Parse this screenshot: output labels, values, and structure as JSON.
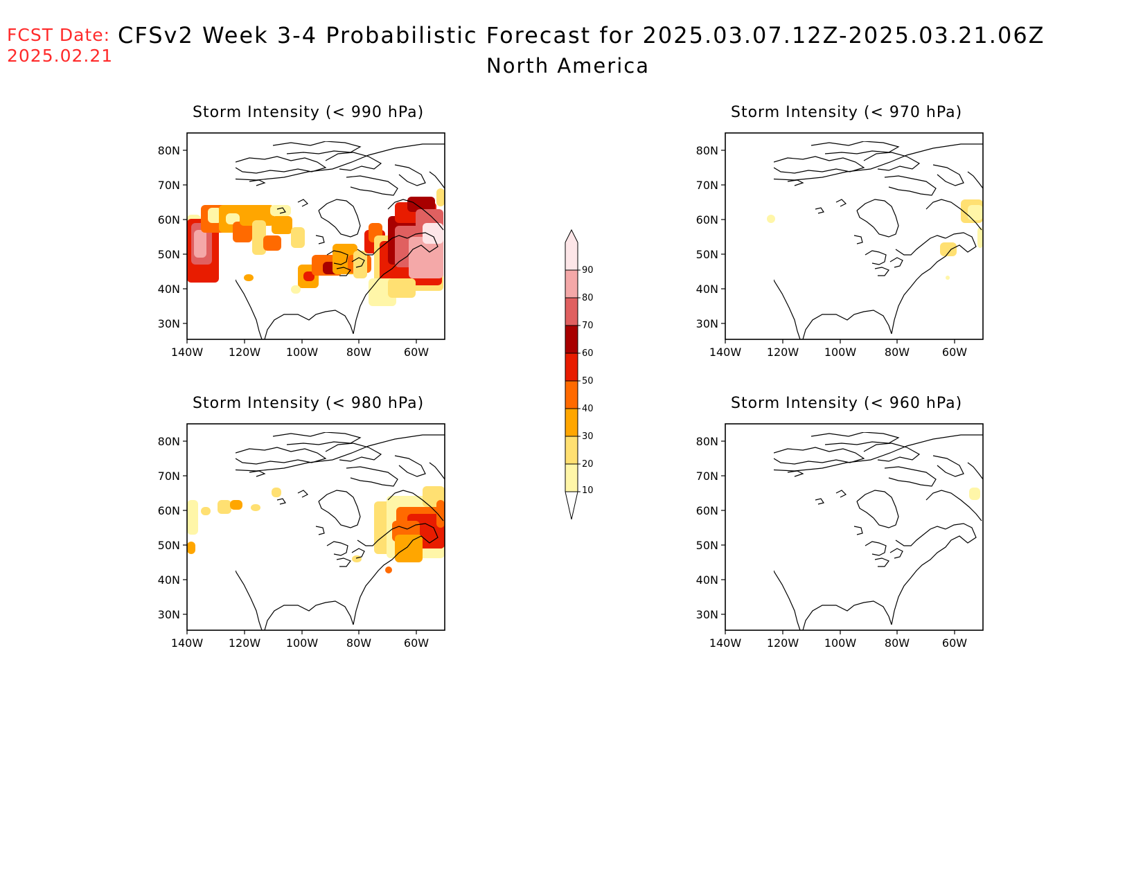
{
  "header": {
    "fcst_label": "FCST Date:",
    "fcst_date": "2025.02.21",
    "title": "CFSv2 Week 3-4 Probabilistic Forecast for 2025.03.07.12Z-2025.03.21.06Z",
    "region": "North America"
  },
  "axes": {
    "lat_labels": [
      "80N",
      "70N",
      "60N",
      "50N",
      "40N",
      "30N"
    ],
    "lon_labels": [
      "140W",
      "120W",
      "100W",
      "80W",
      "60W"
    ]
  },
  "panels": [
    {
      "title": "Storm Intensity (< 990 hPa)"
    },
    {
      "title": "Storm Intensity (< 970 hPa)"
    },
    {
      "title": "Storm Intensity (< 980 hPa)"
    },
    {
      "title": "Storm Intensity (< 960 hPa)"
    }
  ],
  "colorbar": {
    "levels": [
      "10",
      "20",
      "30",
      "40",
      "50",
      "60",
      "70",
      "80",
      "90"
    ],
    "colors": [
      "#fff6a8",
      "#ffe072",
      "#ffa600",
      "#ff6a00",
      "#e81c00",
      "#a80000",
      "#e06060",
      "#f4a8a8",
      "#fde6e8"
    ]
  }
}
